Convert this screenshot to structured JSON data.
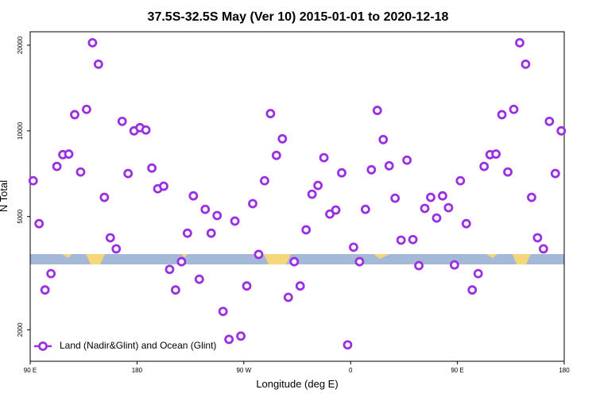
{
  "chart_data": {
    "type": "scatter",
    "title": "37.5S-32.5S May (Ver 10)   2015-01-01 to 2020-12-18",
    "x_label": "Longitude (deg E)",
    "y_label": "N Total",
    "log_y": true,
    "legend_position": "lower-left",
    "xlim": [
      90,
      540
    ],
    "ylim": [
      1550,
      22300
    ],
    "xticks": [
      {
        "value": 90,
        "label": "90 E"
      },
      180,
      {
        "value": 270,
        "label": "90 W"
      },
      {
        "value": 360,
        "label": "0"
      },
      {
        "value": 450,
        "label": "90 E"
      },
      {
        "value": 540,
        "label": "180"
      }
    ],
    "yticks": [
      2000,
      5000,
      10000,
      20000
    ],
    "series": [
      {
        "name": "Land (Nadir&Glint) and Ocean (Glint)",
        "color": "#9b30e0",
        "x": [
          92.5,
          97.5,
          102.5,
          107.5,
          112.5,
          117.5,
          122.5,
          127.5,
          132.5,
          137.5,
          142.5,
          147.5,
          152.5,
          157.5,
          162.5,
          167.5,
          172.5,
          177.5,
          182.5,
          187.5,
          192.5,
          197.5,
          202.5,
          207.5,
          212.5,
          217.5,
          222.5,
          227.5,
          232.5,
          237.5,
          242.5,
          247.5,
          252.5,
          257.5,
          262.5,
          267.5,
          272.5,
          277.5,
          282.5,
          287.5,
          292.5,
          297.5,
          302.5,
          307.5,
          312.5,
          317.5,
          322.5,
          327.5,
          332.5,
          337.5,
          342.5,
          347.5,
          352.5,
          357.5,
          362.5,
          367.5,
          372.5,
          377.5,
          382.5,
          387.5,
          392.5,
          397.5,
          402.5,
          407.5,
          412.5,
          417.5,
          422.5,
          427.5,
          432.5,
          437.5,
          442.5,
          447.5,
          452.5,
          457.5,
          462.5,
          467.5,
          472.5,
          477.5,
          482.5,
          487.5,
          492.5,
          497.5,
          502.5,
          507.5,
          512.5,
          517.5,
          522.5,
          527.5,
          532.5,
          537.5
        ],
        "values": [
          6680,
          4720,
          2760,
          3150,
          7500,
          8250,
          8290,
          11400,
          7170,
          11900,
          20400,
          17150,
          5840,
          4210,
          3850,
          10800,
          7080,
          10000,
          10260,
          10070,
          7400,
          6260,
          6390,
          3260,
          2760,
          3470,
          4370,
          5910,
          3010,
          5300,
          4370,
          5040,
          2320,
          1850,
          4820,
          1900,
          2850,
          5550,
          3680,
          6680,
          11500,
          8200,
          9380,
          2600,
          3470,
          2850,
          4490,
          5990,
          6430,
          8050,
          5100,
          5270,
          7120,
          1770,
          3900,
          3470,
          5300,
          7300,
          11800,
          9320,
          7540,
          5800,
          4130,
          7890,
          4150,
          3360,
          5340,
          5840,
          4940,
          5910,
          5370,
          3380,
          6680,
          4720,
          2760,
          3150,
          7500,
          8250,
          8290,
          11400,
          7170,
          11900,
          20400,
          17150,
          5840,
          4210,
          3850,
          10800,
          7080,
          10000
        ]
      }
    ]
  }
}
